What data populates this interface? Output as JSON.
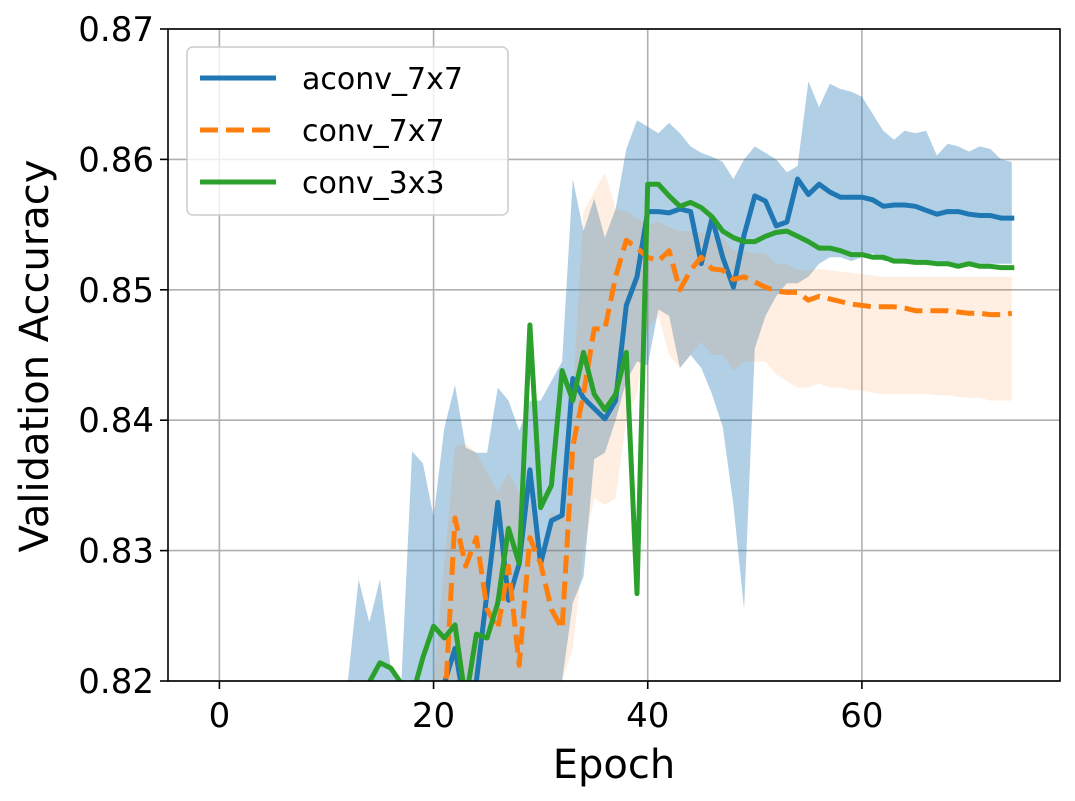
{
  "chart_data": {
    "type": "line",
    "title": "",
    "xlabel": "Epoch",
    "ylabel": "Validation Accuracy",
    "xlim": [
      -4.8,
      78.5
    ],
    "ylim": [
      0.82,
      0.87
    ],
    "xticks": [
      0,
      20,
      40,
      60
    ],
    "xtick_labels": [
      "0",
      "20",
      "40",
      "60"
    ],
    "yticks": [
      0.82,
      0.83,
      0.84,
      0.85,
      0.86,
      0.87
    ],
    "ytick_labels": [
      "0.82",
      "0.83",
      "0.84",
      "0.85",
      "0.86",
      "0.87"
    ],
    "grid": true,
    "legend_position": "top-left",
    "series": [
      {
        "name": "aconv_7x7",
        "color": "#1f77b4",
        "dash": "solid",
        "band_color": "#1f77b4",
        "band_opacity": 0.35,
        "x": [
          21,
          22,
          23,
          24,
          25,
          26,
          27,
          28,
          29,
          30,
          31,
          32,
          33,
          34,
          35,
          36,
          37,
          38,
          39,
          40,
          41,
          42,
          43,
          44,
          45,
          46,
          47,
          48,
          49,
          50,
          51,
          52,
          53,
          54,
          55,
          56,
          57,
          58,
          59,
          60,
          61,
          62,
          63,
          64,
          65,
          66,
          67,
          68,
          69,
          70,
          71,
          72,
          73,
          74
        ],
        "values": [
          0.8198,
          0.8225,
          0.8176,
          0.82,
          0.8268,
          0.8337,
          0.8262,
          0.829,
          0.8362,
          0.829,
          0.8323,
          0.8327,
          0.8432,
          0.8417,
          0.8409,
          0.8401,
          0.8415,
          0.8488,
          0.851,
          0.856,
          0.856,
          0.8559,
          0.8562,
          0.856,
          0.852,
          0.8555,
          0.8525,
          0.8502,
          0.8542,
          0.8572,
          0.8568,
          0.8549,
          0.8552,
          0.8585,
          0.8573,
          0.8581,
          0.8575,
          0.8571,
          0.8571,
          0.8571,
          0.8569,
          0.8564,
          0.8565,
          0.8565,
          0.8564,
          0.8561,
          0.8558,
          0.856,
          0.856,
          0.8558,
          0.8557,
          0.8557,
          0.8555,
          0.8555
        ],
        "band_x": [
          12,
          13,
          14,
          15,
          16,
          17,
          18,
          19,
          20,
          21,
          22,
          23,
          24,
          25,
          26,
          27,
          28,
          29,
          30,
          31,
          32,
          33,
          34,
          35,
          36,
          37,
          38,
          39,
          40,
          41,
          42,
          43,
          44,
          45,
          46,
          47,
          48,
          49,
          50,
          51,
          52,
          53,
          54,
          55,
          56,
          57,
          58,
          59,
          60,
          61,
          62,
          63,
          64,
          65,
          66,
          67,
          68,
          69,
          70,
          71,
          72,
          73,
          74
        ],
        "band_upper": [
          0.82,
          0.8278,
          0.8245,
          0.8278,
          0.821,
          0.82,
          0.8376,
          0.8367,
          0.8326,
          0.8394,
          0.8427,
          0.8379,
          0.8375,
          0.8375,
          0.8425,
          0.8415,
          0.8392,
          0.8415,
          0.8415,
          0.843,
          0.8445,
          0.8585,
          0.8545,
          0.857,
          0.854,
          0.8562,
          0.8608,
          0.863,
          0.8625,
          0.862,
          0.8628,
          0.862,
          0.861,
          0.8605,
          0.8602,
          0.8598,
          0.8585,
          0.86,
          0.861,
          0.8605,
          0.86,
          0.859,
          0.8595,
          0.866,
          0.864,
          0.8658,
          0.8654,
          0.8652,
          0.8648,
          0.8635,
          0.8622,
          0.8615,
          0.8622,
          0.862,
          0.8622,
          0.8603,
          0.8612,
          0.861,
          0.8606,
          0.861,
          0.8608,
          0.86,
          0.8598
        ],
        "band_lower": [
          0.82,
          0.82,
          0.82,
          0.82,
          0.82,
          0.82,
          0.82,
          0.82,
          0.82,
          0.82,
          0.82,
          0.82,
          0.82,
          0.82,
          0.82,
          0.82,
          0.82,
          0.82,
          0.82,
          0.82,
          0.82,
          0.826,
          0.828,
          0.837,
          0.8375,
          0.84,
          0.843,
          0.8445,
          0.8442,
          0.8485,
          0.848,
          0.844,
          0.845,
          0.844,
          0.842,
          0.8395,
          0.8335,
          0.8255,
          0.8455,
          0.848,
          0.8495,
          0.8505,
          0.8505,
          0.851,
          0.852,
          0.8525,
          0.8525,
          0.8522,
          0.8525,
          0.8528,
          0.8522,
          0.8522,
          0.852,
          0.852,
          0.852,
          0.852,
          0.852,
          0.852,
          0.852,
          0.852,
          0.852,
          0.852,
          0.852
        ]
      },
      {
        "name": "conv_7x7",
        "color": "#ff7f0e",
        "dash": "dashed",
        "band_color": "#ff7f0e",
        "band_opacity": 0.12,
        "x": [
          20,
          21,
          22,
          23,
          24,
          25,
          26,
          27,
          28,
          29,
          30,
          31,
          32,
          33,
          34,
          35,
          36,
          37,
          38,
          39,
          40,
          41,
          42,
          43,
          44,
          45,
          46,
          47,
          48,
          49,
          50,
          51,
          52,
          53,
          54,
          55,
          56,
          57,
          58,
          59,
          60,
          61,
          62,
          63,
          64,
          65,
          66,
          67,
          68,
          69,
          70,
          71,
          72,
          73,
          74
        ],
        "values": [
          0.8178,
          0.8172,
          0.8325,
          0.8288,
          0.831,
          0.8255,
          0.824,
          0.8288,
          0.8212,
          0.831,
          0.829,
          0.8255,
          0.824,
          0.838,
          0.842,
          0.847,
          0.847,
          0.851,
          0.8538,
          0.8532,
          0.8525,
          0.8522,
          0.853,
          0.85,
          0.8515,
          0.8525,
          0.8516,
          0.8515,
          0.8508,
          0.851,
          0.8506,
          0.8502,
          0.8499,
          0.8498,
          0.8498,
          0.8492,
          0.8495,
          0.8493,
          0.8491,
          0.8489,
          0.8488,
          0.8487,
          0.8487,
          0.8487,
          0.8486,
          0.8484,
          0.8484,
          0.8484,
          0.8484,
          0.8483,
          0.8482,
          0.8482,
          0.8481,
          0.8481,
          0.8482
        ],
        "band_x": [
          20,
          21,
          22,
          23,
          24,
          25,
          26,
          27,
          28,
          29,
          30,
          31,
          32,
          33,
          34,
          35,
          36,
          37,
          38,
          39,
          40,
          41,
          42,
          43,
          44,
          45,
          46,
          47,
          48,
          49,
          50,
          51,
          52,
          53,
          54,
          55,
          56,
          57,
          58,
          59,
          60,
          61,
          62,
          63,
          64,
          65,
          66,
          67,
          68,
          69,
          70,
          71,
          72,
          73,
          74
        ],
        "band_upper": [
          0.82,
          0.829,
          0.838,
          0.8382,
          0.8375,
          0.836,
          0.8345,
          0.836,
          0.8345,
          0.8335,
          0.83,
          0.833,
          0.8325,
          0.842,
          0.856,
          0.8575,
          0.859,
          0.8562,
          0.856,
          0.8555,
          0.855,
          0.8552,
          0.8548,
          0.8545,
          0.8545,
          0.8544,
          0.8542,
          0.854,
          0.853,
          0.853,
          0.8528,
          0.8528,
          0.852,
          0.852,
          0.8515,
          0.8515,
          0.8516,
          0.8515,
          0.8514,
          0.8513,
          0.8512,
          0.8511,
          0.851,
          0.851,
          0.851,
          0.851,
          0.851,
          0.851,
          0.851,
          0.851,
          0.851,
          0.851,
          0.851,
          0.851,
          0.851
        ],
        "band_lower": [
          0.82,
          0.82,
          0.82,
          0.82,
          0.82,
          0.82,
          0.82,
          0.82,
          0.82,
          0.82,
          0.82,
          0.82,
          0.82,
          0.8225,
          0.83,
          0.834,
          0.8335,
          0.834,
          0.84,
          0.842,
          0.847,
          0.848,
          0.845,
          0.844,
          0.845,
          0.846,
          0.845,
          0.845,
          0.8438,
          0.8445,
          0.8445,
          0.8445,
          0.8435,
          0.843,
          0.8425,
          0.8425,
          0.8428,
          0.8425,
          0.8425,
          0.8423,
          0.8423,
          0.8421,
          0.842,
          0.842,
          0.842,
          0.842,
          0.842,
          0.8419,
          0.8419,
          0.8418,
          0.8417,
          0.8417,
          0.8415,
          0.8415,
          0.8415
        ]
      },
      {
        "name": "conv_3x3",
        "color": "#2ca02c",
        "dash": "solid",
        "x": [
          14,
          15,
          16,
          17,
          18,
          19,
          20,
          21,
          22,
          23,
          24,
          25,
          26,
          27,
          28,
          29,
          30,
          31,
          32,
          33,
          34,
          35,
          36,
          37,
          38,
          39,
          40,
          41,
          42,
          43,
          44,
          45,
          46,
          47,
          48,
          49,
          50,
          51,
          52,
          53,
          54,
          55,
          56,
          57,
          58,
          59,
          60,
          61,
          62,
          63,
          64,
          65,
          66,
          67,
          68,
          69,
          70,
          71,
          72,
          73,
          74
        ],
        "values": [
          0.8199,
          0.8214,
          0.821,
          0.8198,
          0.8188,
          0.8218,
          0.8242,
          0.8233,
          0.8243,
          0.8185,
          0.8236,
          0.8233,
          0.826,
          0.8317,
          0.829,
          0.8473,
          0.8333,
          0.835,
          0.8438,
          0.8415,
          0.8452,
          0.842,
          0.8408,
          0.842,
          0.8452,
          0.8267,
          0.8581,
          0.8581,
          0.8572,
          0.8564,
          0.8567,
          0.8563,
          0.8556,
          0.8545,
          0.854,
          0.8537,
          0.8537,
          0.8541,
          0.8544,
          0.8545,
          0.8541,
          0.8537,
          0.8532,
          0.8532,
          0.853,
          0.8527,
          0.8527,
          0.8525,
          0.8525,
          0.8522,
          0.8522,
          0.8521,
          0.8521,
          0.852,
          0.852,
          0.8518,
          0.852,
          0.8518,
          0.8518,
          0.8517,
          0.8517
        ]
      }
    ]
  }
}
